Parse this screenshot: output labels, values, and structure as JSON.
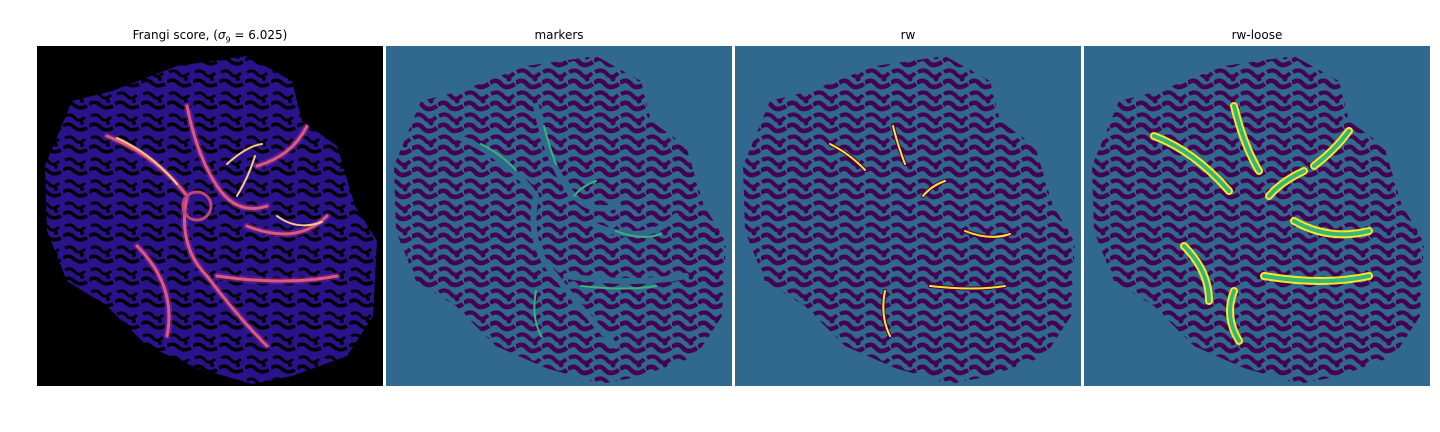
{
  "figure": {
    "panels": [
      {
        "id": "frangi",
        "title_prefix": "Frangi score, (",
        "title_sigma": "σ",
        "title_sub": "9",
        "title_eq": " = 6.025)",
        "colormap": "magma"
      },
      {
        "id": "markers",
        "title": "markers",
        "colormap": "viridis"
      },
      {
        "id": "rw",
        "title": "rw",
        "colormap": "viridis"
      },
      {
        "id": "rw-loose",
        "title": "rw-loose",
        "colormap": "viridis"
      }
    ],
    "colors": {
      "black": "#000000",
      "magma_low": "#1c0f5c",
      "magma_mid": "#3a17a6",
      "magma_vessel": "#b5367a",
      "magma_high": "#fcc883",
      "viridis_bg": "#31688e",
      "viridis_dark": "#440154",
      "viridis_mid": "#35b779",
      "viridis_yellow": "#fde725"
    }
  }
}
